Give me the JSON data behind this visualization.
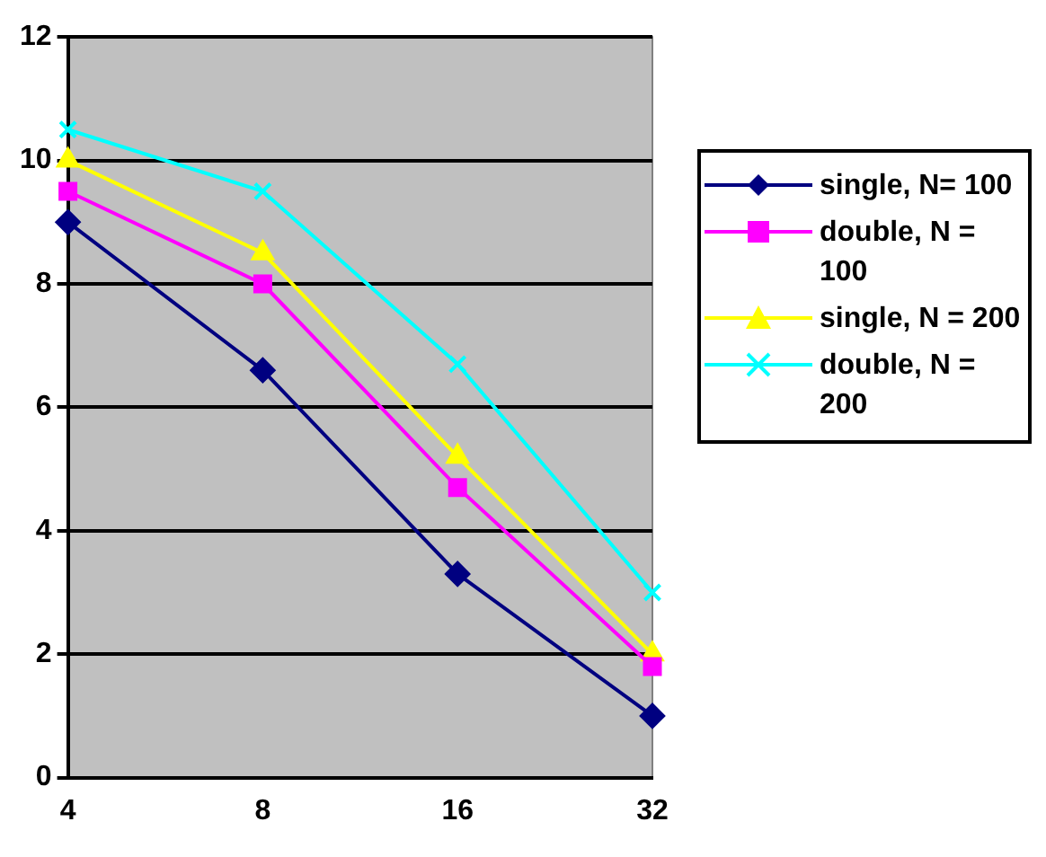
{
  "chart_data": {
    "type": "line",
    "categories": [
      "4",
      "8",
      "16",
      "32"
    ],
    "ylim": [
      0,
      12
    ],
    "yticks": [
      0,
      2,
      4,
      6,
      8,
      10,
      12
    ],
    "grid": "y",
    "legend": "right",
    "line_style": "solid",
    "series": [
      {
        "name": "single, N= 100",
        "color": "#000080",
        "marker": "diamond",
        "values": [
          9,
          6.6,
          3.3,
          1
        ]
      },
      {
        "name": "double, N = 100",
        "color": "#ff00ff",
        "marker": "square",
        "values": [
          9.5,
          8,
          4.7,
          1.8
        ]
      },
      {
        "name": "single, N = 200",
        "color": "#ffff00",
        "marker": "triangle",
        "values": [
          10,
          8.5,
          5.2,
          2
        ]
      },
      {
        "name": "double, N = 200",
        "color": "#00ffff",
        "marker": "cross",
        "values": [
          10.5,
          9.5,
          6.7,
          3
        ]
      }
    ]
  }
}
